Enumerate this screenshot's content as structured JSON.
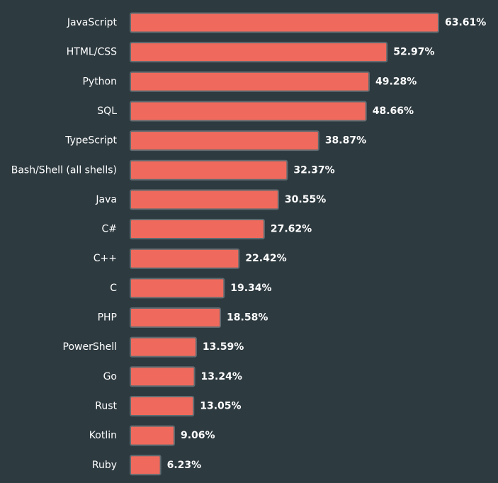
{
  "chart_data": {
    "type": "bar",
    "orientation": "horizontal",
    "title": "",
    "xlabel": "",
    "ylabel": "",
    "categories": [
      "JavaScript",
      "HTML/CSS",
      "Python",
      "SQL",
      "TypeScript",
      "Bash/Shell (all shells)",
      "Java",
      "C#",
      "C++",
      "C",
      "PHP",
      "PowerShell",
      "Go",
      "Rust",
      "Kotlin",
      "Ruby"
    ],
    "values": [
      63.61,
      52.97,
      49.28,
      48.66,
      38.87,
      32.37,
      30.55,
      27.62,
      22.42,
      19.34,
      18.58,
      13.59,
      13.24,
      13.05,
      9.06,
      6.23
    ],
    "value_labels": [
      "63.61%",
      "52.97%",
      "49.28%",
      "48.66%",
      "38.87%",
      "32.37%",
      "30.55%",
      "27.62%",
      "22.42%",
      "19.34%",
      "18.58%",
      "13.59%",
      "13.24%",
      "13.05%",
      "9.06%",
      "6.23%"
    ],
    "xlim": [
      0,
      63.61
    ],
    "grid": false,
    "legend": "none",
    "colors": {
      "background": "#2d3a40",
      "bar_fill": "#ef6a5c",
      "bar_stroke": "#5f6b70",
      "text": "#ffffff"
    }
  }
}
